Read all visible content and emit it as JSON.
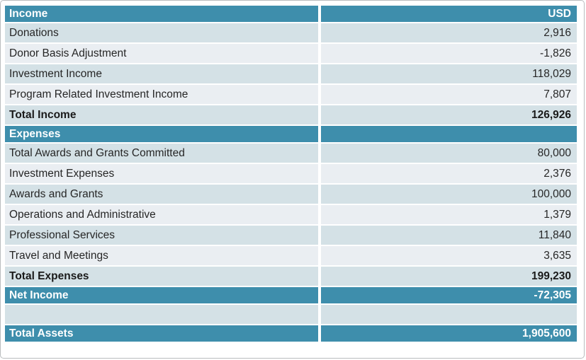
{
  "colors": {
    "header_teal": "#3e8eac",
    "band_dark": "#d4e1e6",
    "band_light": "#eaeef2",
    "header_text": "#ffffff",
    "body_text": "#262626"
  },
  "table": {
    "columns": [
      "label",
      "value"
    ],
    "rows": [
      {
        "label": "Income",
        "value": "USD",
        "type": "section-header"
      },
      {
        "label": "Donations",
        "value": "2,916",
        "type": "data"
      },
      {
        "label": "Donor Basis Adjustment",
        "value": "-1,826",
        "type": "data"
      },
      {
        "label": "Investment Income",
        "value": "118,029",
        "type": "data"
      },
      {
        "label": "Program Related Investment Income",
        "value": "7,807",
        "type": "data"
      },
      {
        "label": "Total Income",
        "value": "126,926",
        "type": "total"
      },
      {
        "label": "Expenses",
        "value": "",
        "type": "section-header"
      },
      {
        "label": "Total Awards and Grants Committed",
        "value": "80,000",
        "type": "data"
      },
      {
        "label": "Investment Expenses",
        "value": "2,376",
        "type": "data"
      },
      {
        "label": "Awards and Grants",
        "value": "100,000",
        "type": "data"
      },
      {
        "label": "Operations and Administrative",
        "value": "1,379",
        "type": "data"
      },
      {
        "label": "Professional Services",
        "value": "11,840",
        "type": "data"
      },
      {
        "label": "Travel and Meetings",
        "value": "3,635",
        "type": "data"
      },
      {
        "label": "Total Expenses",
        "value": "199,230",
        "type": "total"
      },
      {
        "label": "Net Income",
        "value": "-72,305",
        "type": "section-header"
      },
      {
        "label": "",
        "value": "",
        "type": "spacer"
      },
      {
        "label": "Total Assets",
        "value": "1,905,600",
        "type": "section-header"
      }
    ]
  }
}
